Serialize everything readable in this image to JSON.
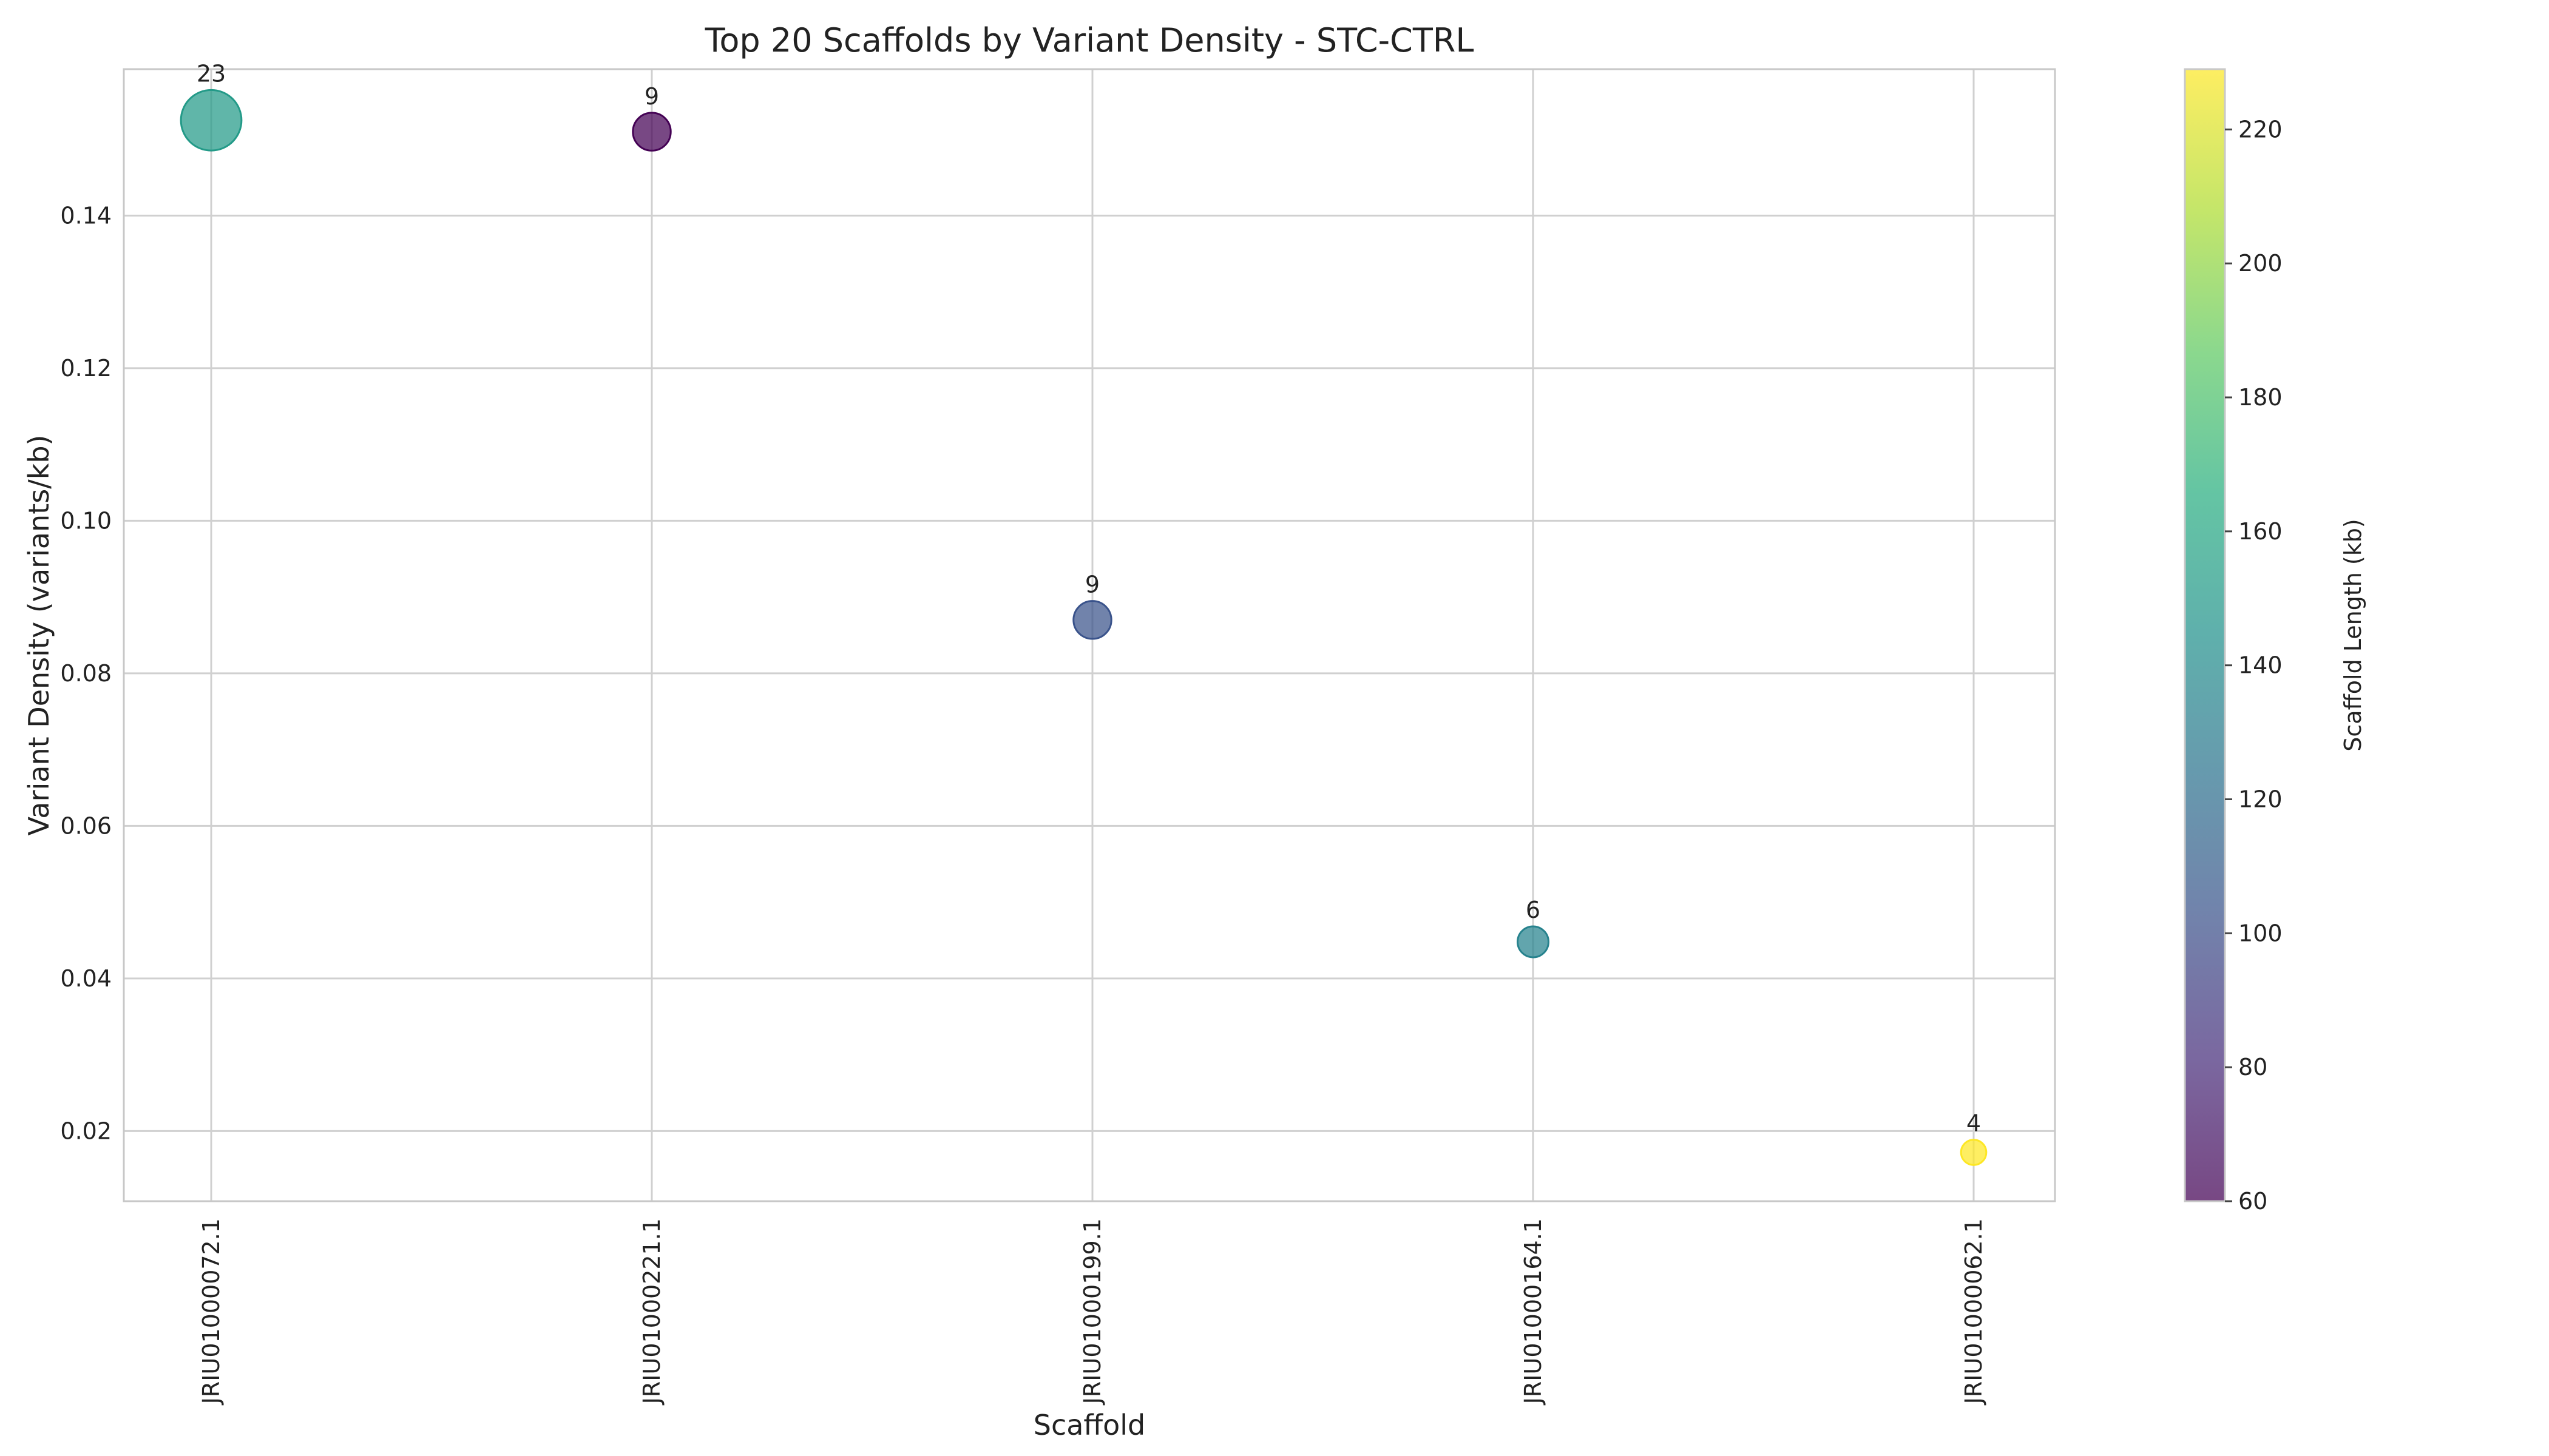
{
  "chart_data": {
    "type": "scatter",
    "title": "Top 20 Scaffolds by Variant Density - STC-CTRL",
    "xlabel": "Scaffold",
    "ylabel": "Variant Density (variants/kb)",
    "categories": [
      "JRIU01000072.1",
      "JRIU01000221.1",
      "JRIU01000199.1",
      "JRIU01000164.1",
      "JRIU01000062.1"
    ],
    "points": [
      {
        "scaffold": "JRIU01000072.1",
        "density": 0.1525,
        "variant_count": 23,
        "length_kb": 151
      },
      {
        "scaffold": "JRIU01000221.1",
        "density": 0.151,
        "variant_count": 9,
        "length_kb": 60
      },
      {
        "scaffold": "JRIU01000199.1",
        "density": 0.087,
        "variant_count": 9,
        "length_kb": 103
      },
      {
        "scaffold": "JRIU01000164.1",
        "density": 0.0448,
        "variant_count": 6,
        "length_kb": 134
      },
      {
        "scaffold": "JRIU01000062.1",
        "density": 0.0172,
        "variant_count": 4,
        "length_kb": 229
      }
    ],
    "ylim": [
      0.0108,
      0.1592
    ],
    "yticks": [
      0.02,
      0.04,
      0.06,
      0.08,
      0.1,
      0.12,
      0.14
    ],
    "grid": true,
    "colorbar": {
      "label": "Scaffold Length (kb)",
      "range": [
        60,
        229
      ],
      "ticks": [
        60,
        80,
        100,
        120,
        140,
        160,
        180,
        200,
        220
      ],
      "colormap": "viridis"
    },
    "marker_size_encodes": "variant_count"
  }
}
